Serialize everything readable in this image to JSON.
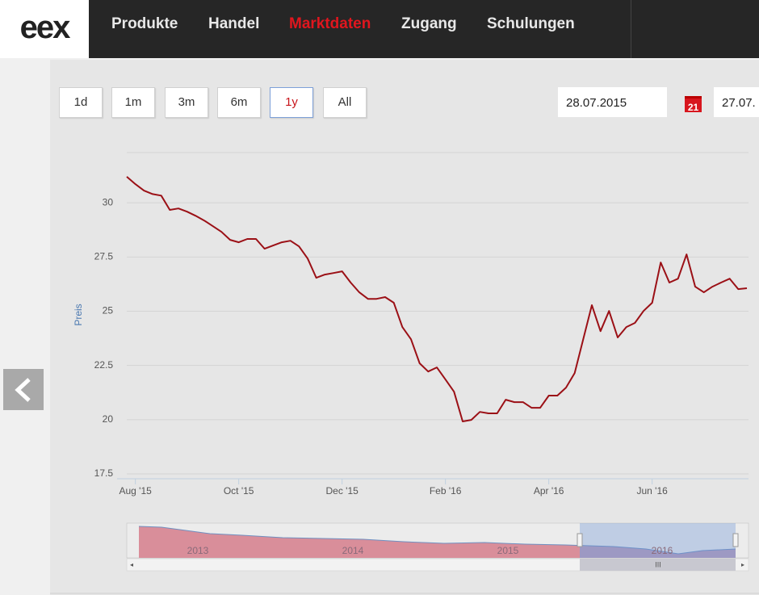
{
  "header": {
    "logo": "eex",
    "nav": [
      "Produkte",
      "Handel",
      "Marktdaten",
      "Zugang",
      "Schulungen"
    ],
    "active": 2
  },
  "range_buttons": [
    "1d",
    "1m",
    "3m",
    "6m",
    "1y",
    "All"
  ],
  "selected_button": 4,
  "date_from": "28.07.2015",
  "calendar_icon": "21",
  "date_to": "27.07.",
  "navigator": {
    "labels": [
      "2013",
      "2014",
      "2015",
      "2016"
    ],
    "scroll_grip": "III"
  },
  "chart_data": {
    "type": "line",
    "y_label": "Preis",
    "color": "#9b1016",
    "categories": [
      null,
      "Aug '15",
      null,
      null,
      null,
      null,
      null,
      null,
      null,
      null,
      null,
      null,
      null,
      "Oct '15",
      null,
      null,
      null,
      null,
      null,
      null,
      null,
      null,
      null,
      null,
      null,
      "Dec '15",
      null,
      null,
      null,
      null,
      null,
      null,
      null,
      null,
      null,
      null,
      null,
      "Feb '16",
      null,
      null,
      null,
      null,
      null,
      null,
      null,
      null,
      null,
      null,
      null,
      "Apr '16",
      null,
      null,
      null,
      null,
      null,
      null,
      null,
      null,
      null,
      null,
      null,
      "Jun '16",
      null,
      null,
      null,
      null,
      null,
      null,
      null,
      null,
      null,
      null,
      null
    ],
    "values": [
      31.2,
      30.86,
      30.56,
      30.4,
      30.33,
      29.67,
      29.74,
      29.59,
      29.4,
      29.18,
      28.92,
      28.66,
      28.29,
      28.18,
      28.33,
      28.33,
      27.88,
      28.03,
      28.18,
      28.25,
      27.99,
      27.43,
      26.54,
      26.69,
      26.76,
      26.84,
      26.32,
      25.87,
      25.57,
      25.57,
      25.65,
      25.39,
      24.27,
      23.71,
      22.6,
      22.22,
      22.41,
      21.85,
      21.29,
      19.92,
      19.99,
      20.36,
      20.29,
      20.29,
      20.92,
      20.81,
      20.81,
      20.55,
      20.55,
      21.11,
      21.11,
      21.48,
      22.15,
      23.71,
      25.28,
      24.08,
      25.01,
      23.79,
      24.27,
      24.46,
      25.01,
      25.39,
      27.25,
      26.32,
      26.5,
      27.62,
      26.13,
      25.87,
      26.13,
      26.32,
      26.5,
      26.02,
      26.06
    ],
    "ylim": [
      17.5,
      32.5
    ],
    "yticks": [
      17.5,
      20,
      22.5,
      25,
      27.5,
      30
    ],
    "grid": true
  }
}
